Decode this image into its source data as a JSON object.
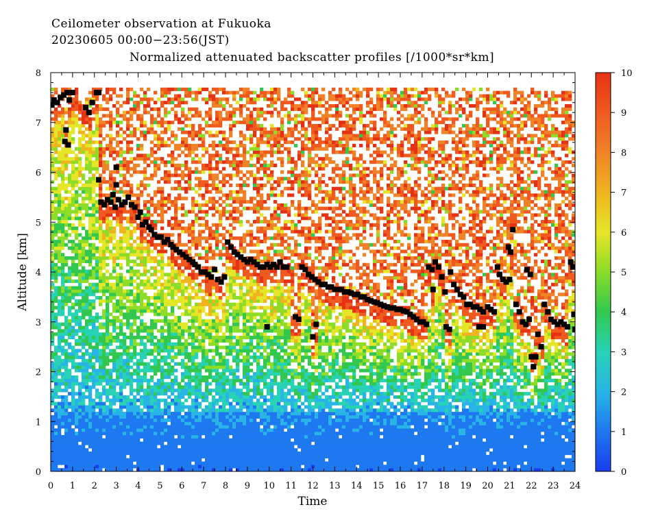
{
  "chart_data": {
    "type": "heatmap",
    "title_line1": "Ceilometer observation at Fukuoka",
    "title_line2": "20230605  00:00−23:56(JST)",
    "subtitle": "Normalized attenuated backscatter profiles [/1000*sr*km]",
    "xlabel": "Time",
    "ylabel": "Altitude [km]",
    "xlim": [
      0,
      24
    ],
    "ylim": [
      0,
      8
    ],
    "x_ticks": [
      "0",
      "1",
      "2",
      "3",
      "4",
      "5",
      "6",
      "7",
      "8",
      "9",
      "10",
      "11",
      "12",
      "13",
      "14",
      "15",
      "16",
      "17",
      "18",
      "19",
      "20",
      "21",
      "22",
      "23",
      "24"
    ],
    "y_ticks": [
      "0",
      "1",
      "2",
      "3",
      "4",
      "5",
      "6",
      "7",
      "8"
    ],
    "data_top_km": 7.7,
    "colorbar": {
      "range": [
        0,
        10
      ],
      "ticks": [
        "0",
        "1",
        "2",
        "3",
        "4",
        "5",
        "6",
        "7",
        "8",
        "9",
        "10"
      ],
      "colors": [
        "#1a3cf0",
        "#1e78f0",
        "#28b4e6",
        "#28d2b4",
        "#32c850",
        "#8cdc28",
        "#e6e628",
        "#f0b41e",
        "#f08228",
        "#f05a1e",
        "#e63214"
      ]
    },
    "cloud_base_points": [
      [
        0.05,
        7.35
      ],
      [
        0.15,
        7.45
      ],
      [
        0.3,
        7.4
      ],
      [
        0.45,
        7.5
      ],
      [
        0.6,
        7.55
      ],
      [
        0.75,
        7.6
      ],
      [
        0.85,
        7.45
      ],
      [
        0.7,
        6.85
      ],
      [
        0.65,
        6.62
      ],
      [
        0.8,
        6.55
      ],
      [
        1.0,
        7.6
      ],
      [
        1.6,
        7.3
      ],
      [
        1.75,
        7.2
      ],
      [
        1.9,
        7.4
      ],
      [
        2.1,
        7.6
      ],
      [
        2.2,
        7.6
      ],
      [
        2.2,
        5.85
      ],
      [
        2.3,
        5.4
      ],
      [
        2.45,
        5.35
      ],
      [
        2.6,
        5.45
      ],
      [
        2.75,
        5.4
      ],
      [
        2.85,
        5.55
      ],
      [
        2.95,
        5.3
      ],
      [
        3.0,
        6.1
      ],
      [
        3.0,
        5.75
      ],
      [
        3.1,
        5.45
      ],
      [
        3.25,
        5.35
      ],
      [
        3.4,
        5.4
      ],
      [
        3.55,
        5.5
      ],
      [
        3.7,
        5.35
      ],
      [
        3.85,
        5.3
      ],
      [
        4.0,
        5.1
      ],
      [
        4.1,
        5.2
      ],
      [
        4.2,
        4.95
      ],
      [
        4.35,
        5.0
      ],
      [
        4.5,
        4.9
      ],
      [
        4.6,
        4.85
      ],
      [
        4.75,
        4.75
      ],
      [
        4.9,
        4.7
      ],
      [
        5.05,
        4.7
      ],
      [
        5.2,
        4.6
      ],
      [
        5.35,
        4.65
      ],
      [
        5.5,
        4.55
      ],
      [
        5.6,
        4.5
      ],
      [
        5.75,
        4.45
      ],
      [
        5.9,
        4.4
      ],
      [
        6.05,
        4.35
      ],
      [
        6.2,
        4.3
      ],
      [
        6.35,
        4.25
      ],
      [
        6.5,
        4.2
      ],
      [
        6.6,
        4.15
      ],
      [
        6.75,
        4.1
      ],
      [
        6.9,
        4.0
      ],
      [
        7.05,
        4.0
      ],
      [
        7.2,
        3.95
      ],
      [
        7.35,
        3.9
      ],
      [
        7.5,
        4.05
      ],
      [
        7.65,
        3.85
      ],
      [
        7.8,
        3.8
      ],
      [
        7.95,
        3.9
      ],
      [
        8.1,
        4.6
      ],
      [
        8.25,
        4.5
      ],
      [
        8.4,
        4.4
      ],
      [
        8.55,
        4.35
      ],
      [
        8.7,
        4.3
      ],
      [
        8.85,
        4.25
      ],
      [
        9.0,
        4.2
      ],
      [
        9.15,
        4.25
      ],
      [
        9.3,
        4.2
      ],
      [
        9.45,
        4.15
      ],
      [
        9.6,
        4.1
      ],
      [
        9.75,
        4.1
      ],
      [
        9.9,
        4.15
      ],
      [
        10.05,
        4.1
      ],
      [
        10.2,
        4.15
      ],
      [
        10.35,
        4.1
      ],
      [
        10.5,
        4.2
      ],
      [
        10.65,
        4.1
      ],
      [
        10.8,
        4.1
      ],
      [
        9.9,
        2.9
      ],
      [
        11.2,
        3.1
      ],
      [
        11.35,
        3.05
      ],
      [
        11.5,
        4.1
      ],
      [
        11.65,
        4.05
      ],
      [
        11.8,
        3.95
      ],
      [
        11.95,
        3.9
      ],
      [
        12.1,
        3.85
      ],
      [
        12.25,
        3.8
      ],
      [
        12.0,
        2.7
      ],
      [
        12.15,
        2.95
      ],
      [
        12.4,
        3.75
      ],
      [
        12.55,
        3.75
      ],
      [
        12.7,
        3.7
      ],
      [
        12.85,
        3.7
      ],
      [
        13.0,
        3.65
      ],
      [
        13.15,
        3.65
      ],
      [
        13.3,
        3.65
      ],
      [
        13.45,
        3.6
      ],
      [
        13.6,
        3.6
      ],
      [
        13.75,
        3.58
      ],
      [
        13.9,
        3.55
      ],
      [
        14.05,
        3.55
      ],
      [
        14.2,
        3.5
      ],
      [
        14.35,
        3.5
      ],
      [
        14.5,
        3.45
      ],
      [
        14.65,
        3.42
      ],
      [
        14.8,
        3.4
      ],
      [
        14.95,
        3.38
      ],
      [
        15.1,
        3.35
      ],
      [
        15.25,
        3.32
      ],
      [
        15.4,
        3.3
      ],
      [
        15.55,
        3.28
      ],
      [
        15.7,
        3.28
      ],
      [
        15.85,
        3.25
      ],
      [
        16.0,
        3.25
      ],
      [
        16.15,
        3.22
      ],
      [
        16.3,
        3.2
      ],
      [
        16.45,
        3.15
      ],
      [
        16.6,
        3.1
      ],
      [
        16.75,
        3.05
      ],
      [
        16.9,
        3.0
      ],
      [
        17.05,
        3.0
      ],
      [
        17.2,
        2.95
      ],
      [
        17.3,
        4.1
      ],
      [
        17.45,
        4.05
      ],
      [
        17.6,
        4.2
      ],
      [
        17.75,
        4.1
      ],
      [
        17.5,
        3.65
      ],
      [
        17.9,
        3.9
      ],
      [
        18.05,
        3.6
      ],
      [
        18.1,
        2.9
      ],
      [
        18.25,
        2.85
      ],
      [
        18.3,
        4.0
      ],
      [
        18.45,
        3.75
      ],
      [
        18.6,
        3.65
      ],
      [
        18.75,
        3.55
      ],
      [
        18.9,
        3.5
      ],
      [
        19.05,
        3.35
      ],
      [
        19.2,
        3.35
      ],
      [
        19.35,
        3.3
      ],
      [
        19.5,
        3.3
      ],
      [
        19.65,
        3.25
      ],
      [
        19.8,
        3.2
      ],
      [
        19.6,
        2.9
      ],
      [
        19.8,
        2.9
      ],
      [
        20.0,
        3.3
      ],
      [
        20.15,
        3.25
      ],
      [
        20.3,
        3.2
      ],
      [
        20.45,
        4.1
      ],
      [
        20.55,
        3.95
      ],
      [
        20.7,
        3.85
      ],
      [
        20.85,
        3.8
      ],
      [
        21.0,
        3.85
      ],
      [
        20.95,
        4.5
      ],
      [
        21.05,
        4.4
      ],
      [
        21.15,
        4.85
      ],
      [
        21.3,
        3.35
      ],
      [
        21.45,
        3.2
      ],
      [
        21.6,
        3.0
      ],
      [
        21.75,
        2.95
      ],
      [
        21.9,
        3.05
      ],
      [
        21.8,
        4.05
      ],
      [
        21.95,
        3.95
      ],
      [
        22.0,
        2.3
      ],
      [
        22.1,
        2.1
      ],
      [
        22.2,
        2.3
      ],
      [
        22.3,
        2.75
      ],
      [
        22.45,
        2.5
      ],
      [
        22.6,
        3.35
      ],
      [
        22.75,
        3.2
      ],
      [
        22.9,
        3.05
      ],
      [
        23.05,
        3.0
      ],
      [
        23.2,
        2.95
      ],
      [
        23.35,
        3.0
      ],
      [
        23.5,
        2.95
      ],
      [
        23.65,
        2.9
      ],
      [
        23.8,
        4.2
      ],
      [
        23.9,
        4.1
      ],
      [
        23.95,
        3.15
      ],
      [
        24.0,
        2.85
      ]
    ]
  }
}
